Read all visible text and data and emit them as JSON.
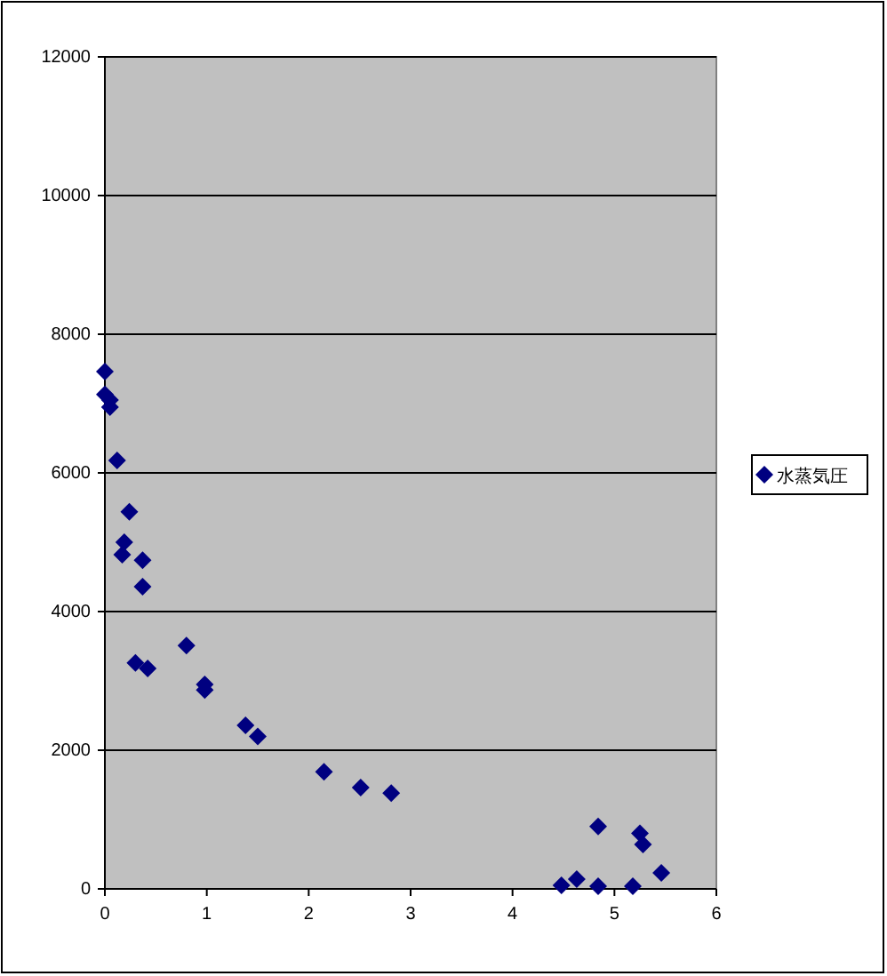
{
  "chart_data": {
    "type": "scatter",
    "series": [
      {
        "name": "水蒸気圧",
        "color": "#000080",
        "x": [
          0,
          0,
          0.05,
          0.05,
          0.12,
          0.24,
          0.19,
          0.17,
          0.37,
          0.37,
          0.3,
          0.42,
          0.8,
          0.98,
          0.98,
          1.38,
          1.5,
          2.15,
          2.51,
          2.81,
          4.48,
          4.63,
          4.84,
          4.84,
          5.18,
          5.25,
          5.28,
          5.46
        ],
        "values": [
          7460,
          7130,
          7050,
          6950,
          6180,
          5440,
          5000,
          4820,
          4740,
          4360,
          3260,
          3180,
          3510,
          2950,
          2870,
          2360,
          2200,
          1690,
          1460,
          1380,
          50,
          140,
          900,
          40,
          40,
          800,
          640,
          230
        ]
      }
    ],
    "xlim": [
      0,
      6
    ],
    "xticks": [
      0,
      1,
      2,
      3,
      4,
      5,
      6
    ],
    "ylim": [
      0,
      12000
    ],
    "yticks": [
      0,
      2000,
      4000,
      6000,
      8000,
      10000,
      12000
    ],
    "grid": "y",
    "legend": "right",
    "marker": "diamond"
  }
}
